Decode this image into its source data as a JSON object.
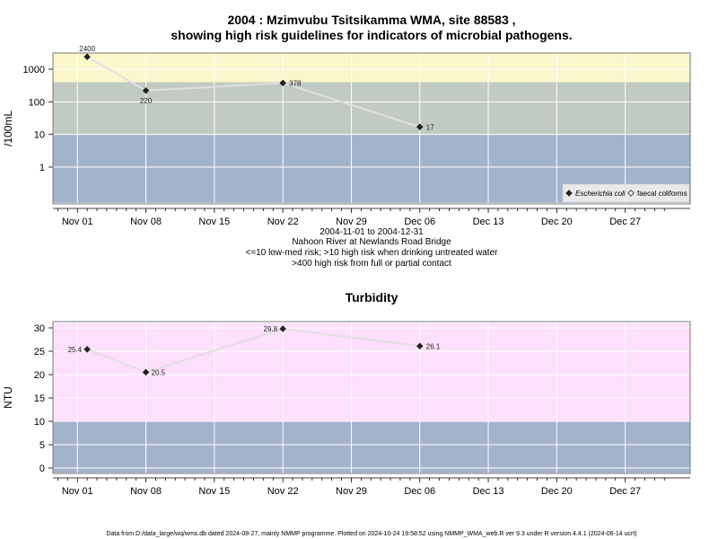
{
  "page": {
    "title_line1": "2004 : Mzimvubu Tsitsikamma WMA, site 88583 ,",
    "title_line2": "showing high risk guidelines for indicators of microbial pathogens.",
    "notes": [
      "2004-11-01 to 2004-12-31",
      "Nahoon River at Newlands Road Bridge",
      "<=10 low-med risk; >10 high risk when drinking untreated water",
      ">400 high risk from full or partial contact"
    ],
    "footer": "Data from D:/data_large/wq/wms.db dated 2024-08-27, mainly NMMP programme. Plotted on 2024-10-24 19:58:52 using NMMP_WMA_web.R ver 9.3 under R version 4.4.1 (2024-06-14 ucrt)"
  },
  "colors": {
    "band_low": "#a3b3cc",
    "band_mid": "#c2cbc3",
    "band_high": "#fbf6cc",
    "band_turb_high": "#fde0fc",
    "line": "#e0e0e0",
    "point": "#222222",
    "grid": "#ffffff"
  },
  "chart_data": [
    {
      "type": "line",
      "title": "",
      "ylabel": "/100mL",
      "yscale": "log",
      "x_tick_labels": [
        "Nov 01",
        "Nov 08",
        "Nov 15",
        "Nov 22",
        "Nov 29",
        "Dec 06",
        "Dec 13",
        "Dec 20",
        "Dec 27"
      ],
      "x_tick_dates": [
        "2004-11-01",
        "2004-11-08",
        "2004-11-15",
        "2004-11-22",
        "2004-11-29",
        "2004-12-06",
        "2004-12-13",
        "2004-12-20",
        "2004-12-27"
      ],
      "y_ticks": [
        1,
        10,
        100,
        1000
      ],
      "y_tick_labels": [
        "1",
        "10",
        "100",
        "1000"
      ],
      "bands": [
        {
          "from": 0.08,
          "to": 10,
          "color": "#a3b3cc"
        },
        {
          "from": 10,
          "to": 400,
          "color": "#c2cbc3"
        },
        {
          "from": 400,
          "to": 5000,
          "color": "#fbf6cc"
        }
      ],
      "series": [
        {
          "name": "Escherichia coli",
          "marker": "filled-diamond",
          "points": [
            {
              "x": "2004-11-02",
              "y": 2400,
              "label": "2400"
            },
            {
              "x": "2004-11-08",
              "y": 220,
              "label": "220"
            },
            {
              "x": "2004-11-22",
              "y": 378,
              "label": "378"
            },
            {
              "x": "2004-12-06",
              "y": 17,
              "label": "17"
            }
          ]
        }
      ],
      "legend": {
        "placement": "bottom-right",
        "entries": [
          {
            "label": "Escherichia coli",
            "marker": "filled-diamond",
            "italic": true
          },
          {
            "label": "faecal coliforms",
            "marker": "open-diamond",
            "italic": false
          }
        ]
      }
    },
    {
      "type": "line",
      "title": "Turbidity",
      "ylabel": "NTU",
      "yscale": "linear",
      "x_tick_labels": [
        "Nov 01",
        "Nov 08",
        "Nov 15",
        "Nov 22",
        "Nov 29",
        "Dec 06",
        "Dec 13",
        "Dec 20",
        "Dec 27"
      ],
      "x_tick_dates": [
        "2004-11-01",
        "2004-11-08",
        "2004-11-15",
        "2004-11-22",
        "2004-11-29",
        "2004-12-06",
        "2004-12-13",
        "2004-12-20",
        "2004-12-27"
      ],
      "y_ticks": [
        0,
        5,
        10,
        15,
        20,
        25,
        30
      ],
      "y_tick_labels": [
        "0",
        "5",
        "10",
        "15",
        "20",
        "25",
        "30"
      ],
      "bands": [
        {
          "from": -1,
          "to": 10,
          "color": "#a3b3cc"
        },
        {
          "from": 10,
          "to": 31,
          "color": "#fde0fc"
        }
      ],
      "series": [
        {
          "name": "",
          "marker": "filled-diamond",
          "points": [
            {
              "x": "2004-11-02",
              "y": 25.4,
              "label": "25.4"
            },
            {
              "x": "2004-11-08",
              "y": 20.5,
              "label": "20.5"
            },
            {
              "x": "2004-11-22",
              "y": 29.8,
              "label": "29.8"
            },
            {
              "x": "2004-12-06",
              "y": 26.1,
              "label": "26.1"
            }
          ]
        }
      ]
    }
  ]
}
